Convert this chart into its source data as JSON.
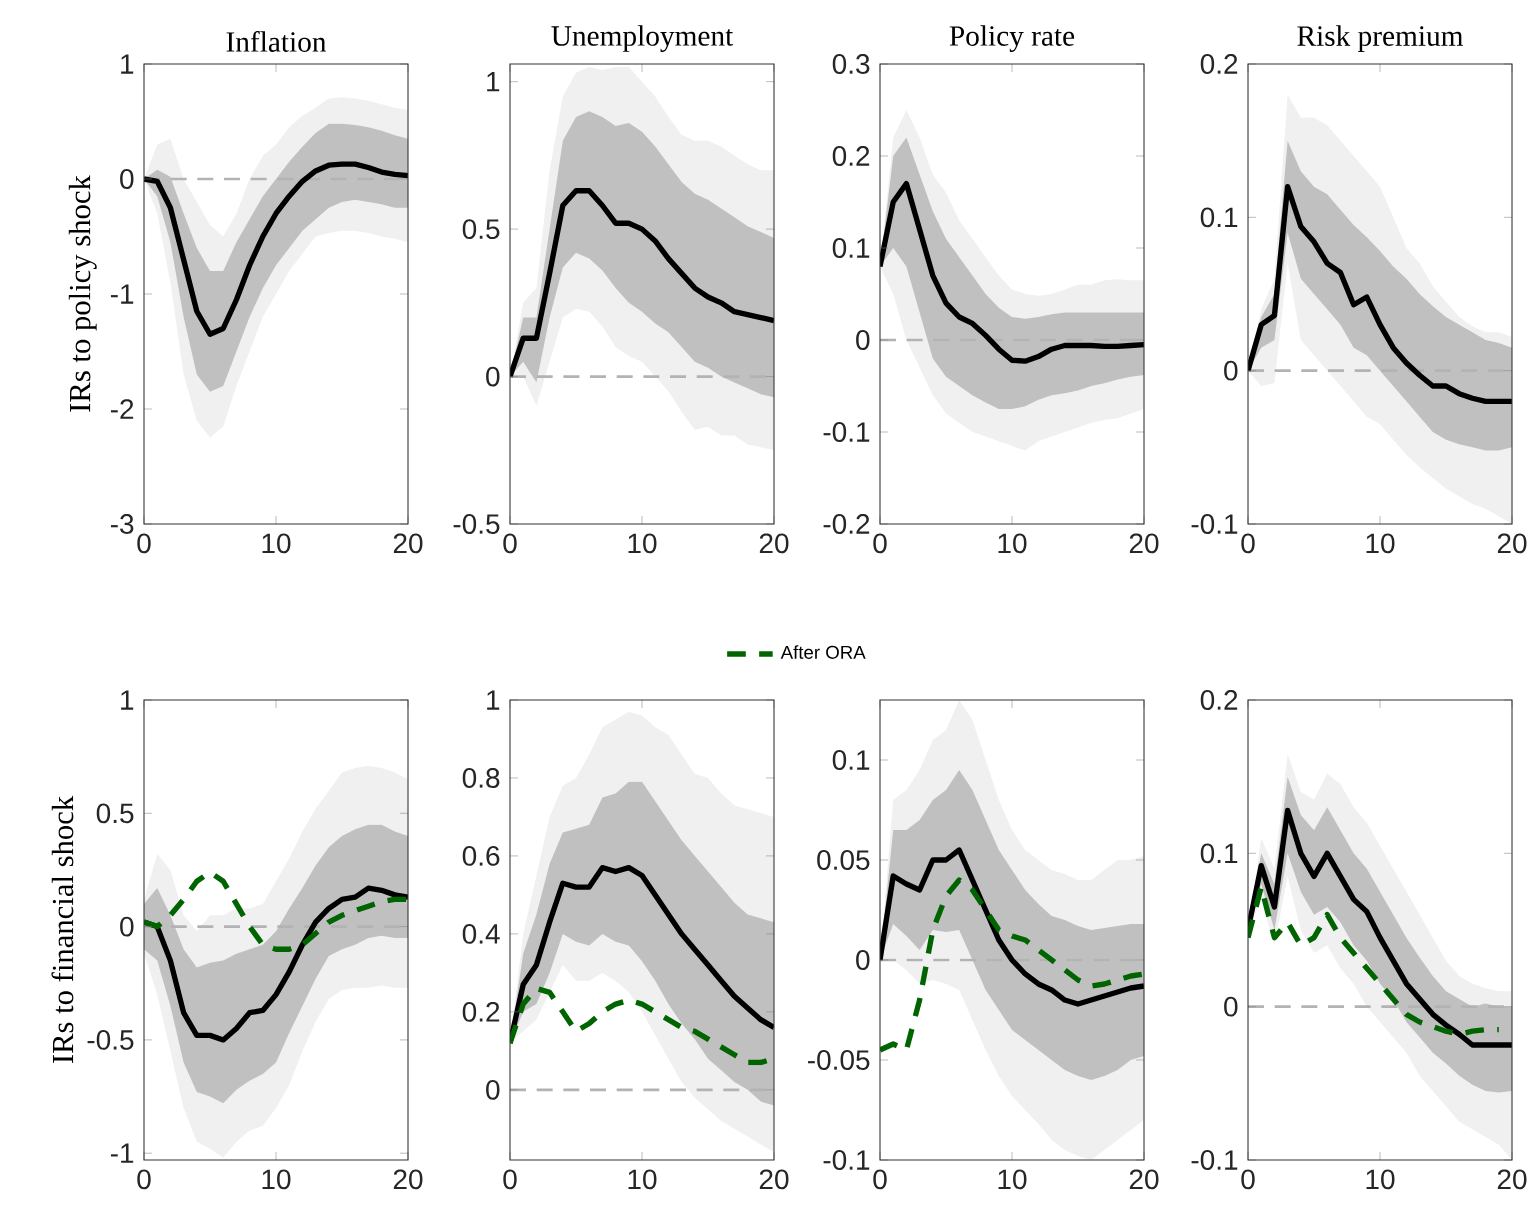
{
  "chart_data": [
    {
      "type": "line",
      "title": "Inflation",
      "ylabel": "IRs to policy shock",
      "x": [
        0,
        1,
        2,
        3,
        4,
        5,
        6,
        7,
        8,
        9,
        10,
        11,
        12,
        13,
        14,
        15,
        16,
        17,
        18,
        19,
        20
      ],
      "xlim": [
        0,
        20
      ],
      "xticks": [
        0,
        10,
        20
      ],
      "ylim": [
        -3,
        1
      ],
      "yticks": [
        -3,
        -2,
        -1,
        0,
        1
      ],
      "ref_lines": [
        {
          "axis": "y",
          "value": 0,
          "color": "#b3b3b3",
          "line_style": "dashed"
        }
      ],
      "series": [
        {
          "color": "#f0f0f0",
          "values": [
            null,
            null,
            null,
            null,
            null,
            null,
            null,
            null,
            null,
            null,
            null,
            null,
            null,
            null,
            null,
            null,
            null,
            null,
            null,
            null,
            null
          ],
          "upper": [
            0,
            0.3,
            0.35,
            0.0,
            -0.2,
            -0.4,
            -0.5,
            -0.3,
            0.0,
            0.2,
            0.3,
            0.45,
            0.55,
            0.62,
            0.7,
            0.71,
            0.7,
            0.68,
            0.65,
            0.62,
            0.6
          ],
          "lower": [
            0,
            -0.3,
            -0.9,
            -1.7,
            -2.1,
            -2.25,
            -2.15,
            -1.8,
            -1.5,
            -1.2,
            -1.0,
            -0.8,
            -0.65,
            -0.5,
            -0.47,
            -0.45,
            -0.45,
            -0.47,
            -0.5,
            -0.52,
            -0.55
          ]
        },
        {
          "color": "#c0c0c0",
          "values": [
            null,
            null,
            null,
            null,
            null,
            null,
            null,
            null,
            null,
            null,
            null,
            null,
            null,
            null,
            null,
            null,
            null,
            null,
            null,
            null,
            null
          ],
          "upper": [
            0,
            0.08,
            0.02,
            -0.3,
            -0.6,
            -0.8,
            -0.8,
            -0.55,
            -0.35,
            -0.15,
            0.0,
            0.15,
            0.28,
            0.4,
            0.48,
            0.48,
            0.47,
            0.45,
            0.42,
            0.38,
            0.35
          ],
          "lower": [
            0,
            -0.15,
            -0.55,
            -1.2,
            -1.7,
            -1.85,
            -1.8,
            -1.5,
            -1.2,
            -0.95,
            -0.75,
            -0.6,
            -0.45,
            -0.35,
            -0.25,
            -0.2,
            -0.18,
            -0.2,
            -0.22,
            -0.25,
            -0.25
          ]
        },
        {
          "color": "#000000",
          "line_style": "solid",
          "values": [
            0,
            -0.02,
            -0.25,
            -0.7,
            -1.15,
            -1.35,
            -1.3,
            -1.05,
            -0.75,
            -0.5,
            -0.3,
            -0.15,
            -0.02,
            0.07,
            0.12,
            0.13,
            0.13,
            0.1,
            0.06,
            0.04,
            0.03
          ]
        }
      ]
    },
    {
      "type": "line",
      "title": "Unemployment",
      "x": [
        0,
        1,
        2,
        3,
        4,
        5,
        6,
        7,
        8,
        9,
        10,
        11,
        12,
        13,
        14,
        15,
        16,
        17,
        18,
        19,
        20
      ],
      "xlim": [
        0,
        20
      ],
      "xticks": [
        0,
        10,
        20
      ],
      "ylim": [
        -0.5,
        1.06
      ],
      "yticks": [
        -0.5,
        0,
        0.5,
        1
      ],
      "ref_lines": [
        {
          "axis": "y",
          "value": 0,
          "color": "#b3b3b3",
          "line_style": "dashed"
        }
      ],
      "series": [
        {
          "color": "#f0f0f0",
          "values": [
            null,
            null,
            null,
            null,
            null,
            null,
            null,
            null,
            null,
            null,
            null,
            null,
            null,
            null,
            null,
            null,
            null,
            null,
            null,
            null,
            null
          ],
          "upper": [
            0,
            0.25,
            0.3,
            0.7,
            0.95,
            1.03,
            1.05,
            1.04,
            1.05,
            1.05,
            1.0,
            0.95,
            0.88,
            0.82,
            0.8,
            0.8,
            0.78,
            0.75,
            0.72,
            0.7,
            0.7
          ],
          "lower": [
            0,
            0.0,
            -0.1,
            0.05,
            0.2,
            0.23,
            0.22,
            0.17,
            0.1,
            0.07,
            0.05,
            0.0,
            -0.05,
            -0.12,
            -0.18,
            -0.17,
            -0.2,
            -0.2,
            -0.23,
            -0.24,
            -0.25
          ]
        },
        {
          "color": "#c0c0c0",
          "values": [
            null,
            null,
            null,
            null,
            null,
            null,
            null,
            null,
            null,
            null,
            null,
            null,
            null,
            null,
            null,
            null,
            null,
            null,
            null,
            null,
            null
          ],
          "upper": [
            0,
            0.2,
            0.2,
            0.5,
            0.8,
            0.88,
            0.9,
            0.88,
            0.85,
            0.86,
            0.83,
            0.78,
            0.72,
            0.66,
            0.62,
            0.6,
            0.57,
            0.54,
            0.51,
            0.49,
            0.47
          ],
          "lower": [
            0,
            0.05,
            -0.02,
            0.2,
            0.37,
            0.42,
            0.4,
            0.36,
            0.3,
            0.25,
            0.22,
            0.18,
            0.15,
            0.1,
            0.05,
            0.03,
            0.0,
            -0.02,
            -0.04,
            -0.06,
            -0.07
          ]
        },
        {
          "color": "#000000",
          "line_style": "solid",
          "values": [
            0,
            0.13,
            0.13,
            0.35,
            0.58,
            0.63,
            0.63,
            0.58,
            0.52,
            0.52,
            0.5,
            0.46,
            0.4,
            0.35,
            0.3,
            0.27,
            0.25,
            0.22,
            0.21,
            0.2,
            0.19
          ]
        }
      ]
    },
    {
      "type": "line",
      "title": "Policy rate",
      "x": [
        0,
        1,
        2,
        3,
        4,
        5,
        6,
        7,
        8,
        9,
        10,
        11,
        12,
        13,
        14,
        15,
        16,
        17,
        18,
        19,
        20
      ],
      "xlim": [
        0,
        20
      ],
      "xticks": [
        0,
        10,
        20
      ],
      "ylim": [
        -0.2,
        0.3
      ],
      "yticks": [
        -0.2,
        -0.1,
        0,
        0.1,
        0.2,
        0.3
      ],
      "ref_lines": [
        {
          "axis": "y",
          "value": 0,
          "color": "#b3b3b3",
          "line_style": "dashed"
        }
      ],
      "series": [
        {
          "color": "#f0f0f0",
          "values": [
            null,
            null,
            null,
            null,
            null,
            null,
            null,
            null,
            null,
            null,
            null,
            null,
            null,
            null,
            null,
            null,
            null,
            null,
            null,
            null,
            null
          ],
          "upper": [
            0.08,
            0.22,
            0.25,
            0.22,
            0.18,
            0.16,
            0.13,
            0.11,
            0.09,
            0.07,
            0.055,
            0.05,
            0.048,
            0.05,
            0.055,
            0.06,
            0.06,
            0.065,
            0.066,
            0.065,
            0.065
          ],
          "lower": [
            0.08,
            0.05,
            0.0,
            -0.03,
            -0.06,
            -0.08,
            -0.09,
            -0.1,
            -0.105,
            -0.11,
            -0.115,
            -0.12,
            -0.11,
            -0.105,
            -0.1,
            -0.095,
            -0.09,
            -0.087,
            -0.085,
            -0.08,
            -0.075
          ]
        },
        {
          "color": "#c0c0c0",
          "values": [
            null,
            null,
            null,
            null,
            null,
            null,
            null,
            null,
            null,
            null,
            null,
            null,
            null,
            null,
            null,
            null,
            null,
            null,
            null,
            null,
            null
          ],
          "upper": [
            0.08,
            0.2,
            0.22,
            0.18,
            0.14,
            0.11,
            0.09,
            0.07,
            0.05,
            0.035,
            0.025,
            0.023,
            0.025,
            0.028,
            0.03,
            0.03,
            0.03,
            0.03,
            0.03,
            0.03,
            0.03
          ],
          "lower": [
            0.08,
            0.1,
            0.08,
            0.03,
            -0.02,
            -0.04,
            -0.05,
            -0.06,
            -0.068,
            -0.075,
            -0.075,
            -0.072,
            -0.065,
            -0.06,
            -0.058,
            -0.055,
            -0.05,
            -0.047,
            -0.043,
            -0.04,
            -0.038
          ]
        },
        {
          "color": "#000000",
          "line_style": "solid",
          "values": [
            0.08,
            0.15,
            0.17,
            0.12,
            0.07,
            0.04,
            0.025,
            0.018,
            0.005,
            -0.01,
            -0.022,
            -0.023,
            -0.018,
            -0.01,
            -0.006,
            -0.006,
            -0.006,
            -0.007,
            -0.007,
            -0.006,
            -0.005
          ]
        }
      ]
    },
    {
      "type": "line",
      "title": "Risk premium",
      "x": [
        0,
        1,
        2,
        3,
        4,
        5,
        6,
        7,
        8,
        9,
        10,
        11,
        12,
        13,
        14,
        15,
        16,
        17,
        18,
        19,
        20
      ],
      "xlim": [
        0,
        20
      ],
      "xticks": [
        0,
        10,
        20
      ],
      "ylim": [
        -0.1,
        0.2
      ],
      "yticks": [
        -0.1,
        0,
        0.1,
        0.2
      ],
      "ref_lines": [
        {
          "axis": "y",
          "value": 0,
          "color": "#b3b3b3",
          "line_style": "dashed"
        }
      ],
      "series": [
        {
          "color": "#f0f0f0",
          "values": [
            null,
            null,
            null,
            null,
            null,
            null,
            null,
            null,
            null,
            null,
            null,
            null,
            null,
            null,
            null,
            null,
            null,
            null,
            null,
            null,
            null
          ],
          "upper": [
            0,
            0.04,
            0.06,
            0.18,
            0.165,
            0.165,
            0.16,
            0.15,
            0.14,
            0.13,
            0.12,
            0.1,
            0.08,
            0.07,
            0.055,
            0.045,
            0.035,
            0.029,
            0.025,
            0.025,
            0.022
          ],
          "lower": [
            0,
            -0.01,
            -0.008,
            0.07,
            0.02,
            0.01,
            0.0,
            -0.01,
            -0.02,
            -0.03,
            -0.035,
            -0.045,
            -0.055,
            -0.063,
            -0.07,
            -0.077,
            -0.082,
            -0.087,
            -0.09,
            -0.095,
            -0.1
          ]
        },
        {
          "color": "#c0c0c0",
          "values": [
            null,
            null,
            null,
            null,
            null,
            null,
            null,
            null,
            null,
            null,
            null,
            null,
            null,
            null,
            null,
            null,
            null,
            null,
            null,
            null,
            null
          ],
          "upper": [
            0,
            0.035,
            0.05,
            0.15,
            0.13,
            0.12,
            0.115,
            0.105,
            0.095,
            0.087,
            0.078,
            0.068,
            0.06,
            0.05,
            0.042,
            0.035,
            0.03,
            0.025,
            0.02,
            0.018,
            0.015
          ],
          "lower": [
            0,
            0.015,
            0.02,
            0.09,
            0.06,
            0.05,
            0.04,
            0.03,
            0.015,
            0.01,
            0.0,
            -0.01,
            -0.02,
            -0.03,
            -0.04,
            -0.045,
            -0.048,
            -0.05,
            -0.052,
            -0.052,
            -0.05
          ]
        },
        {
          "color": "#000000",
          "line_style": "solid",
          "values": [
            0.0,
            0.03,
            0.036,
            0.12,
            0.094,
            0.084,
            0.07,
            0.064,
            0.043,
            0.048,
            0.03,
            0.015,
            0.005,
            -0.003,
            -0.01,
            -0.01,
            -0.015,
            -0.018,
            -0.02,
            -0.02,
            -0.02
          ]
        }
      ]
    },
    {
      "type": "line",
      "ylabel": "IRs to financial shock",
      "x": [
        0,
        1,
        2,
        3,
        4,
        5,
        6,
        7,
        8,
        9,
        10,
        11,
        12,
        13,
        14,
        15,
        16,
        17,
        18,
        19,
        20
      ],
      "xlim": [
        0,
        20
      ],
      "xticks": [
        0,
        10,
        20
      ],
      "ylim": [
        -1.03,
        1
      ],
      "yticks": [
        -1,
        -0.5,
        0,
        0.5,
        1
      ],
      "ref_lines": [
        {
          "axis": "y",
          "value": 0,
          "color": "#b3b3b3",
          "line_style": "dashed"
        }
      ],
      "series": [
        {
          "color": "#f0f0f0",
          "values": [
            null,
            null,
            null,
            null,
            null,
            null,
            null,
            null,
            null,
            null,
            null,
            null,
            null,
            null,
            null,
            null,
            null,
            null,
            null,
            null,
            null
          ],
          "upper": [
            0.12,
            0.32,
            0.25,
            0.05,
            -0.02,
            0.05,
            0.05,
            0.08,
            0.08,
            0.1,
            0.2,
            0.3,
            0.42,
            0.52,
            0.6,
            0.68,
            0.7,
            0.71,
            0.7,
            0.68,
            0.65
          ],
          "lower": [
            -0.12,
            -0.3,
            -0.55,
            -0.8,
            -0.95,
            -0.98,
            -1.02,
            -0.95,
            -0.9,
            -0.88,
            -0.8,
            -0.7,
            -0.55,
            -0.42,
            -0.32,
            -0.28,
            -0.27,
            -0.27,
            -0.26,
            -0.27,
            -0.27
          ]
        },
        {
          "color": "#c0c0c0",
          "values": [
            null,
            null,
            null,
            null,
            null,
            null,
            null,
            null,
            null,
            null,
            null,
            null,
            null,
            null,
            null,
            null,
            null,
            null,
            null,
            null,
            null
          ],
          "upper": [
            0.1,
            0.17,
            0.05,
            -0.1,
            -0.18,
            -0.16,
            -0.15,
            -0.12,
            -0.1,
            -0.08,
            -0.02,
            0.08,
            0.17,
            0.27,
            0.35,
            0.4,
            0.43,
            0.45,
            0.45,
            0.42,
            0.4
          ],
          "lower": [
            -0.1,
            -0.15,
            -0.35,
            -0.6,
            -0.73,
            -0.75,
            -0.78,
            -0.72,
            -0.68,
            -0.65,
            -0.6,
            -0.47,
            -0.35,
            -0.23,
            -0.13,
            -0.1,
            -0.08,
            -0.05,
            -0.04,
            -0.05,
            -0.05
          ]
        },
        {
          "color": "#000000",
          "line_style": "solid",
          "values": [
            0.02,
            0.0,
            -0.15,
            -0.38,
            -0.48,
            -0.48,
            -0.5,
            -0.45,
            -0.38,
            -0.37,
            -0.3,
            -0.2,
            -0.08,
            0.02,
            0.08,
            0.12,
            0.13,
            0.17,
            0.16,
            0.14,
            0.13
          ]
        },
        {
          "color": "#006400",
          "line_style": "dashed",
          "values": [
            0.02,
            0.0,
            0.05,
            0.12,
            0.2,
            0.24,
            0.2,
            0.1,
            0.0,
            -0.08,
            -0.1,
            -0.1,
            -0.08,
            -0.03,
            0.02,
            0.05,
            0.07,
            0.09,
            0.11,
            0.12,
            0.12
          ]
        }
      ]
    },
    {
      "type": "line",
      "legend": "top",
      "x": [
        0,
        1,
        2,
        3,
        4,
        5,
        6,
        7,
        8,
        9,
        10,
        11,
        12,
        13,
        14,
        15,
        16,
        17,
        18,
        19,
        20
      ],
      "xlim": [
        0,
        20
      ],
      "xticks": [
        0,
        10,
        20
      ],
      "ylim": [
        -0.18,
        1
      ],
      "yticks": [
        0,
        0.2,
        0.4,
        0.6,
        0.8,
        1
      ],
      "ref_lines": [
        {
          "axis": "y",
          "value": 0,
          "color": "#b3b3b3",
          "line_style": "dashed"
        }
      ],
      "series": [
        {
          "color": "#f0f0f0",
          "values": [
            null,
            null,
            null,
            null,
            null,
            null,
            null,
            null,
            null,
            null,
            null,
            null,
            null,
            null,
            null,
            null,
            null,
            null,
            null,
            null,
            null
          ],
          "upper": [
            0.12,
            0.4,
            0.55,
            0.7,
            0.78,
            0.8,
            0.86,
            0.93,
            0.95,
            0.97,
            0.96,
            0.93,
            0.91,
            0.86,
            0.81,
            0.8,
            0.76,
            0.73,
            0.72,
            0.71,
            0.7
          ],
          "lower": [
            0.12,
            0.15,
            0.18,
            0.25,
            0.32,
            0.28,
            0.28,
            0.3,
            0.28,
            0.25,
            0.2,
            0.14,
            0.08,
            0.02,
            -0.02,
            -0.05,
            -0.08,
            -0.1,
            -0.12,
            -0.14,
            -0.16
          ]
        },
        {
          "color": "#c0c0c0",
          "values": [
            null,
            null,
            null,
            null,
            null,
            null,
            null,
            null,
            null,
            null,
            null,
            null,
            null,
            null,
            null,
            null,
            null,
            null,
            null,
            null,
            null
          ],
          "upper": [
            0.12,
            0.35,
            0.45,
            0.58,
            0.66,
            0.67,
            0.68,
            0.75,
            0.76,
            0.79,
            0.79,
            0.74,
            0.69,
            0.64,
            0.6,
            0.56,
            0.52,
            0.48,
            0.45,
            0.44,
            0.43
          ],
          "lower": [
            0.12,
            0.2,
            0.22,
            0.3,
            0.4,
            0.38,
            0.37,
            0.4,
            0.38,
            0.37,
            0.33,
            0.28,
            0.22,
            0.17,
            0.13,
            0.08,
            0.05,
            0.02,
            0.0,
            -0.03,
            -0.04
          ]
        },
        {
          "color": "#000000",
          "line_style": "solid",
          "values": [
            0.12,
            0.27,
            0.32,
            0.43,
            0.53,
            0.52,
            0.52,
            0.57,
            0.56,
            0.57,
            0.55,
            0.5,
            0.45,
            0.4,
            0.36,
            0.32,
            0.28,
            0.24,
            0.21,
            0.18,
            0.16
          ]
        },
        {
          "name": "After ORA",
          "color": "#006400",
          "line_style": "dashed",
          "values": [
            0.12,
            0.22,
            0.26,
            0.25,
            0.2,
            0.15,
            0.17,
            0.2,
            0.22,
            0.23,
            0.22,
            0.2,
            0.18,
            0.16,
            0.15,
            0.13,
            0.11,
            0.09,
            0.07,
            0.07,
            0.08
          ]
        }
      ]
    },
    {
      "type": "line",
      "x": [
        0,
        1,
        2,
        3,
        4,
        5,
        6,
        7,
        8,
        9,
        10,
        11,
        12,
        13,
        14,
        15,
        16,
        17,
        18,
        19,
        20
      ],
      "xlim": [
        0,
        20
      ],
      "xticks": [
        0,
        10,
        20
      ],
      "ylim": [
        -0.1,
        0.13
      ],
      "yticks": [
        -0.1,
        -0.05,
        0,
        0.05,
        0.1
      ],
      "ref_lines": [
        {
          "axis": "y",
          "value": 0,
          "color": "#b3b3b3",
          "line_style": "dashed"
        }
      ],
      "series": [
        {
          "color": "#f0f0f0",
          "values": [
            null,
            null,
            null,
            null,
            null,
            null,
            null,
            null,
            null,
            null,
            null,
            null,
            null,
            null,
            null,
            null,
            null,
            null,
            null,
            null,
            null
          ],
          "upper": [
            0,
            0.08,
            0.085,
            0.095,
            0.11,
            0.115,
            0.13,
            0.12,
            0.1,
            0.08,
            0.065,
            0.055,
            0.05,
            0.045,
            0.043,
            0.04,
            0.04,
            0.045,
            0.05,
            0.05,
            0.052
          ],
          "lower": [
            0,
            0.0,
            -0.005,
            -0.012,
            -0.01,
            -0.012,
            -0.015,
            -0.03,
            -0.045,
            -0.058,
            -0.068,
            -0.075,
            -0.082,
            -0.09,
            -0.095,
            -0.098,
            -0.1,
            -0.095,
            -0.09,
            -0.085,
            -0.08
          ]
        },
        {
          "color": "#c0c0c0",
          "values": [
            null,
            null,
            null,
            null,
            null,
            null,
            null,
            null,
            null,
            null,
            null,
            null,
            null,
            null,
            null,
            null,
            null,
            null,
            null,
            null,
            null
          ],
          "upper": [
            0,
            0.065,
            0.065,
            0.07,
            0.08,
            0.085,
            0.095,
            0.085,
            0.07,
            0.055,
            0.045,
            0.035,
            0.028,
            0.022,
            0.02,
            0.017,
            0.015,
            0.016,
            0.017,
            0.018,
            0.018
          ],
          "lower": [
            0,
            0.018,
            0.012,
            0.005,
            0.015,
            0.014,
            0.015,
            0.0,
            -0.015,
            -0.025,
            -0.035,
            -0.04,
            -0.045,
            -0.05,
            -0.055,
            -0.058,
            -0.06,
            -0.058,
            -0.055,
            -0.05,
            -0.048
          ]
        },
        {
          "color": "#000000",
          "line_style": "solid",
          "values": [
            0,
            0.042,
            0.038,
            0.035,
            0.05,
            0.05,
            0.055,
            0.04,
            0.025,
            0.01,
            0.0,
            -0.007,
            -0.012,
            -0.015,
            -0.02,
            -0.022,
            -0.02,
            -0.018,
            -0.016,
            -0.014,
            -0.013
          ]
        },
        {
          "color": "#006400",
          "line_style": "dashed",
          "values": [
            -0.045,
            -0.042,
            -0.045,
            -0.02,
            0.015,
            0.032,
            0.04,
            0.035,
            0.025,
            0.015,
            0.012,
            0.01,
            0.005,
            0.0,
            -0.005,
            -0.01,
            -0.013,
            -0.012,
            -0.01,
            -0.008,
            -0.007
          ]
        }
      ]
    },
    {
      "type": "line",
      "x": [
        0,
        1,
        2,
        3,
        4,
        5,
        6,
        7,
        8,
        9,
        10,
        11,
        12,
        13,
        14,
        15,
        16,
        17,
        18,
        19,
        20
      ],
      "xlim": [
        0,
        20
      ],
      "xticks": [
        0,
        10,
        20
      ],
      "ylim": [
        -0.1,
        0.2
      ],
      "yticks": [
        -0.1,
        0,
        0.1,
        0.2
      ],
      "ref_lines": [
        {
          "axis": "y",
          "value": 0,
          "color": "#b3b3b3",
          "line_style": "dashed"
        }
      ],
      "series": [
        {
          "color": "#f0f0f0",
          "values": [
            null,
            null,
            null,
            null,
            null,
            null,
            null,
            null,
            null,
            null,
            null,
            null,
            null,
            null,
            null,
            null,
            null,
            null,
            null,
            null,
            null
          ],
          "upper": [
            0.05,
            0.11,
            0.09,
            0.165,
            0.14,
            0.135,
            0.152,
            0.145,
            0.13,
            0.12,
            0.105,
            0.09,
            0.075,
            0.06,
            0.045,
            0.03,
            0.02,
            0.015,
            0.012,
            0.01,
            0.01
          ],
          "lower": [
            0.05,
            0.07,
            0.04,
            0.085,
            0.05,
            0.035,
            0.04,
            0.025,
            0.015,
            0.0,
            -0.01,
            -0.02,
            -0.03,
            -0.045,
            -0.055,
            -0.065,
            -0.075,
            -0.08,
            -0.085,
            -0.09,
            -0.1
          ]
        },
        {
          "color": "#c0c0c0",
          "values": [
            null,
            null,
            null,
            null,
            null,
            null,
            null,
            null,
            null,
            null,
            null,
            null,
            null,
            null,
            null,
            null,
            null,
            null,
            null,
            null,
            null
          ],
          "upper": [
            0.05,
            0.1,
            0.08,
            0.15,
            0.125,
            0.115,
            0.13,
            0.115,
            0.1,
            0.09,
            0.075,
            0.06,
            0.045,
            0.032,
            0.02,
            0.01,
            0.005,
            0.0,
            0.002,
            0.0,
            0.0
          ],
          "lower": [
            0.05,
            0.08,
            0.05,
            0.1,
            0.075,
            0.06,
            0.065,
            0.055,
            0.04,
            0.03,
            0.015,
            0.005,
            -0.01,
            -0.02,
            -0.03,
            -0.037,
            -0.045,
            -0.051,
            -0.055,
            -0.056,
            -0.055
          ]
        },
        {
          "color": "#000000",
          "line_style": "solid",
          "values": [
            0.05,
            0.092,
            0.065,
            0.128,
            0.1,
            0.085,
            0.1,
            0.085,
            0.07,
            0.062,
            0.045,
            0.03,
            0.015,
            0.005,
            -0.005,
            -0.012,
            -0.018,
            -0.025,
            -0.025,
            -0.025,
            -0.025
          ]
        },
        {
          "color": "#006400",
          "line_style": "dashed",
          "values": [
            0.045,
            0.078,
            0.045,
            0.055,
            0.04,
            0.045,
            0.06,
            0.045,
            0.035,
            0.025,
            0.015,
            0.005,
            -0.005,
            -0.01,
            -0.013,
            -0.016,
            -0.018,
            -0.016,
            -0.015,
            -0.015,
            null
          ]
        }
      ]
    }
  ]
}
